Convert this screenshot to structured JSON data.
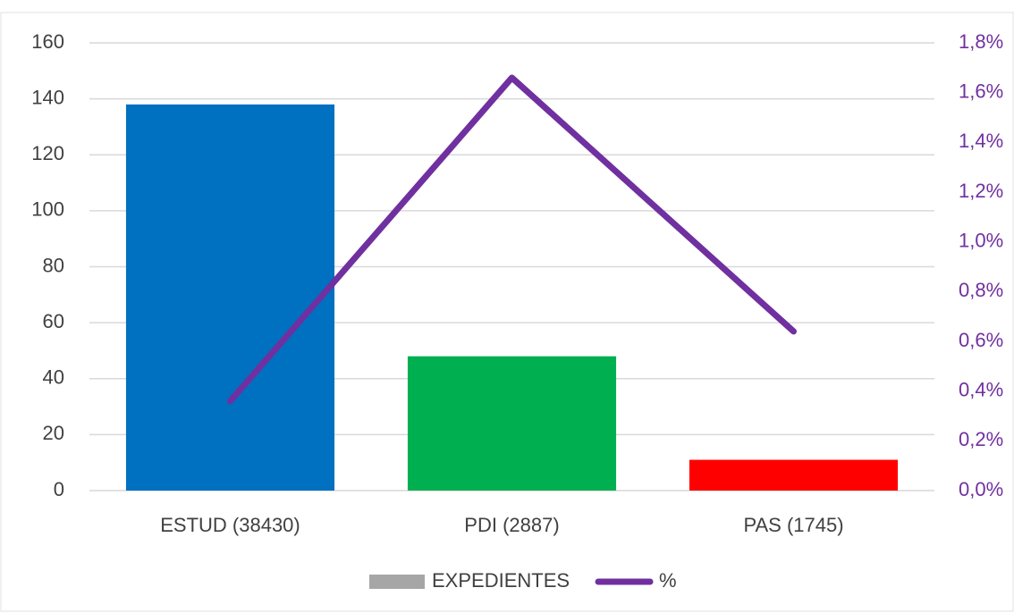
{
  "chart_data": {
    "type": "bar",
    "categories": [
      "ESTUD (38430)",
      "PDI (2887)",
      "PAS (1745)"
    ],
    "series": [
      {
        "name": "EXPEDIENTES",
        "type": "bar",
        "color": "#a6a6a6",
        "colors": [
          "#0070c0",
          "#00b050",
          "#ff0000"
        ],
        "values": [
          138,
          48,
          11
        ]
      },
      {
        "name": "%",
        "type": "line",
        "axis": "y2",
        "color": "#7030a0",
        "values": [
          0.36,
          1.66,
          0.64
        ]
      }
    ],
    "ylim": [
      0,
      160
    ],
    "yticks": [
      0,
      20,
      40,
      60,
      80,
      100,
      120,
      140,
      160
    ],
    "y2lim": [
      0,
      1.8
    ],
    "y2ticks": [
      {
        "value": 0,
        "label": "0,0%"
      },
      {
        "value": 0.2,
        "label": "0,2%"
      },
      {
        "value": 0.4,
        "label": "0,4%"
      },
      {
        "value": 0.6,
        "label": "0,6%"
      },
      {
        "value": 0.8,
        "label": "0,8%"
      },
      {
        "value": 1.0,
        "label": "1,0%"
      },
      {
        "value": 1.2,
        "label": "1,2%"
      },
      {
        "value": 1.4,
        "label": "1,4%"
      },
      {
        "value": 1.6,
        "label": "1,6%"
      },
      {
        "value": 1.8,
        "label": "1,8%"
      }
    ],
    "grid": true,
    "legend": "bottom"
  }
}
